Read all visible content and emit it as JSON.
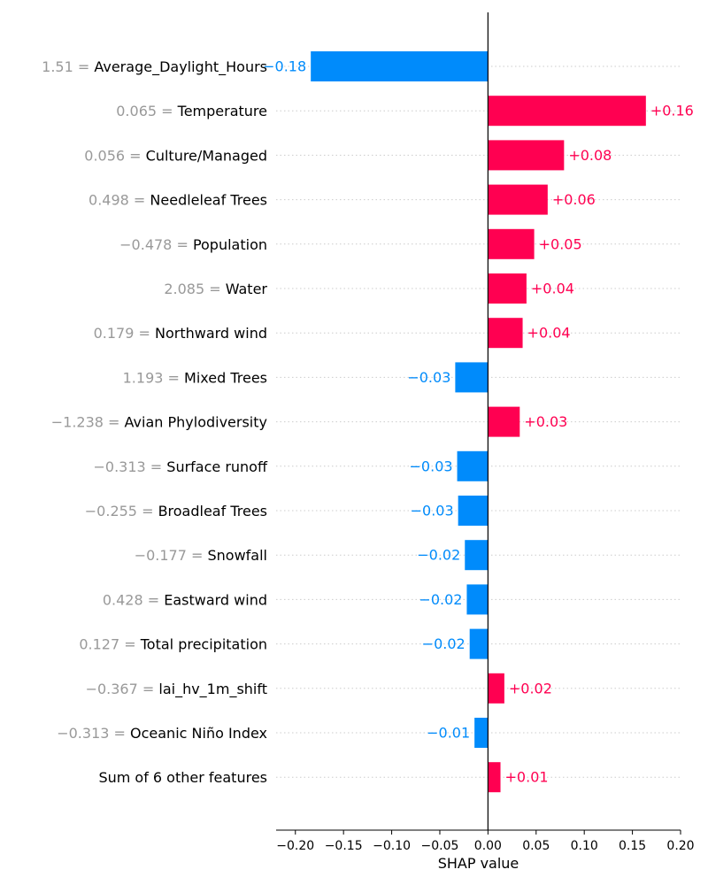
{
  "chart_data": {
    "type": "bar",
    "orientation": "horizontal",
    "xlabel": "SHAP value",
    "xlim": [
      -0.22,
      0.2
    ],
    "xticks": [
      -0.2,
      -0.15,
      -0.1,
      -0.05,
      0.0,
      0.05,
      0.1,
      0.15,
      0.2
    ],
    "xtick_labels": [
      "−0.20",
      "−0.15",
      "−0.10",
      "−0.05",
      "0.00",
      "0.05",
      "0.10",
      "0.15",
      "0.20"
    ],
    "grid": "horizontal dotted row lines",
    "colors": {
      "positive": "#ff0051",
      "negative": "#008bfb",
      "feature_value": "#999999"
    },
    "features": [
      {
        "value": "1.51",
        "name": "Average_Daylight_Hours",
        "shap": -0.184,
        "label": "−0.18"
      },
      {
        "value": "0.065",
        "name": "Temperature",
        "shap": 0.164,
        "label": "+0.16"
      },
      {
        "value": "0.056",
        "name": "Culture/Managed",
        "shap": 0.079,
        "label": "+0.08"
      },
      {
        "value": "0.498",
        "name": "Needleleaf Trees",
        "shap": 0.062,
        "label": "+0.06"
      },
      {
        "value": "−0.478",
        "name": "Population",
        "shap": 0.048,
        "label": "+0.05"
      },
      {
        "value": "2.085",
        "name": "Water",
        "shap": 0.04,
        "label": "+0.04"
      },
      {
        "value": "0.179",
        "name": "Northward wind",
        "shap": 0.036,
        "label": "+0.04"
      },
      {
        "value": "1.193",
        "name": "Mixed Trees",
        "shap": -0.034,
        "label": "−0.03"
      },
      {
        "value": "−1.238",
        "name": "Avian Phylodiversity",
        "shap": 0.033,
        "label": "+0.03"
      },
      {
        "value": "−0.313",
        "name": "Surface runoff",
        "shap": -0.032,
        "label": "−0.03"
      },
      {
        "value": "−0.255",
        "name": "Broadleaf Trees",
        "shap": -0.031,
        "label": "−0.03"
      },
      {
        "value": "−0.177",
        "name": "Snowfall",
        "shap": -0.024,
        "label": "−0.02"
      },
      {
        "value": "0.428",
        "name": "Eastward wind",
        "shap": -0.022,
        "label": "−0.02"
      },
      {
        "value": "0.127",
        "name": "Total precipitation",
        "shap": -0.019,
        "label": "−0.02"
      },
      {
        "value": "−0.367",
        "name": "lai_hv_1m_shift",
        "shap": 0.017,
        "label": "+0.02"
      },
      {
        "value": "−0.313",
        "name": "Oceanic Niño Index",
        "shap": -0.014,
        "label": "−0.01"
      },
      {
        "value": "",
        "name": "Sum of 6 other features",
        "shap": 0.013,
        "label": "+0.01"
      }
    ]
  }
}
